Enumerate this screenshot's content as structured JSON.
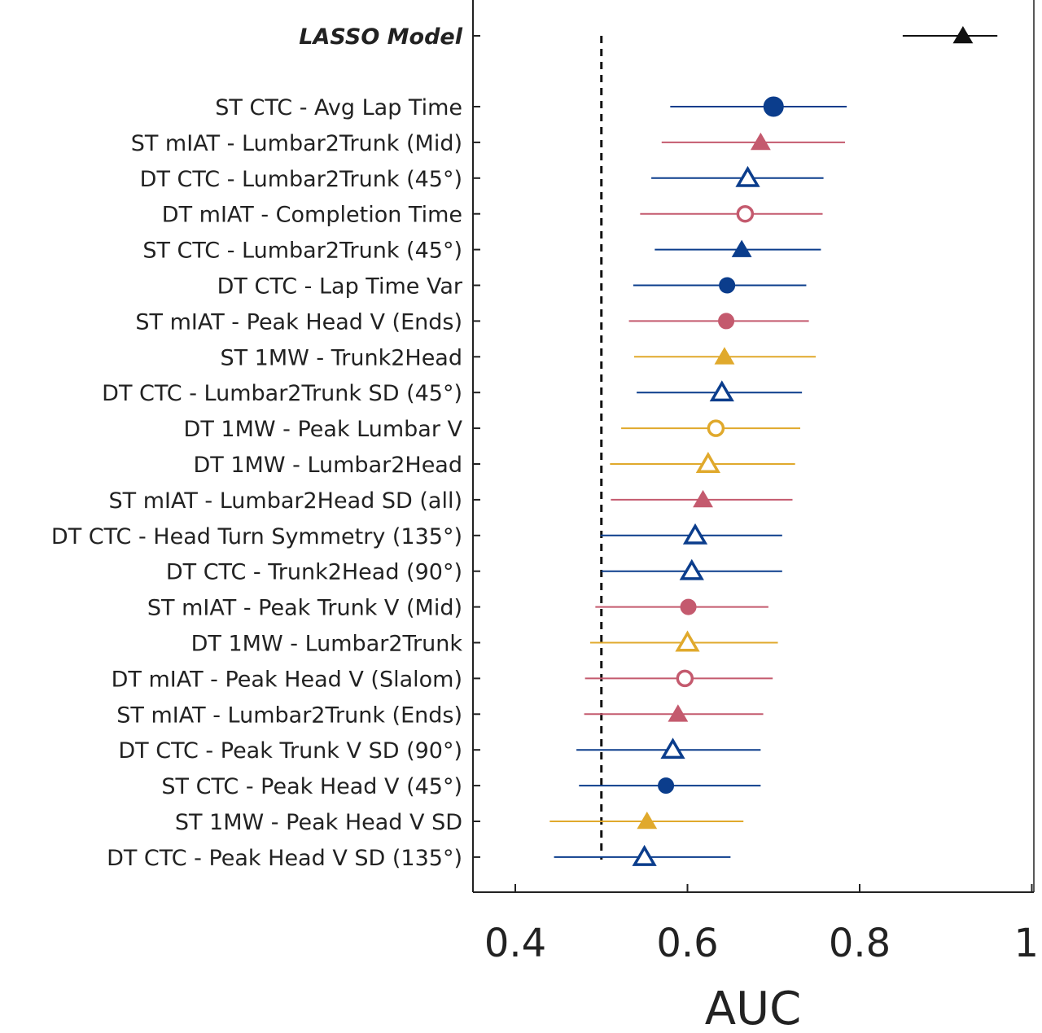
{
  "chart_data": {
    "type": "forest",
    "xlabel": "AUC",
    "xlim": [
      0.35,
      1.0
    ],
    "xticks": [
      0.4,
      0.6,
      0.8,
      1
    ],
    "xtick_labels": [
      "0.4",
      "0.6",
      "0.8",
      "1"
    ],
    "reference_line": {
      "x": 0.5,
      "style": "dashed"
    },
    "colors": {
      "blue": "#0b3d8c",
      "pink": "#c45a6e",
      "yellow": "#e0a92c",
      "black": "#111111"
    },
    "rows": [
      {
        "label": "LASSO Model",
        "bold": true,
        "auc": 0.92,
        "lo": 0.85,
        "hi": 0.96,
        "marker": "triangle",
        "filled": true,
        "color": "black"
      },
      {
        "label": "ST CTC - Avg Lap Time",
        "auc": 0.7,
        "lo": 0.58,
        "hi": 0.785,
        "marker": "circle",
        "filled": true,
        "color": "blue",
        "big": true
      },
      {
        "label": "ST mIAT - Lumbar2Trunk (Mid)",
        "auc": 0.685,
        "lo": 0.57,
        "hi": 0.783,
        "marker": "triangle",
        "filled": true,
        "color": "pink"
      },
      {
        "label": "DT CTC - Lumbar2Trunk (45°)",
        "auc": 0.67,
        "lo": 0.558,
        "hi": 0.758,
        "marker": "triangle",
        "filled": false,
        "color": "blue"
      },
      {
        "label": "DT mIAT - Completion Time",
        "auc": 0.667,
        "lo": 0.545,
        "hi": 0.757,
        "marker": "circle",
        "filled": false,
        "color": "pink"
      },
      {
        "label": "ST CTC - Lumbar2Trunk (45°)",
        "auc": 0.663,
        "lo": 0.562,
        "hi": 0.755,
        "marker": "triangle",
        "filled": true,
        "color": "blue"
      },
      {
        "label": "DT CTC - Lap Time Var",
        "auc": 0.646,
        "lo": 0.537,
        "hi": 0.738,
        "marker": "circle",
        "filled": true,
        "color": "blue"
      },
      {
        "label": "ST mIAT - Peak Head V (Ends)",
        "auc": 0.645,
        "lo": 0.532,
        "hi": 0.741,
        "marker": "circle",
        "filled": true,
        "color": "pink"
      },
      {
        "label": "ST 1MW - Trunk2Head",
        "auc": 0.643,
        "lo": 0.538,
        "hi": 0.749,
        "marker": "triangle",
        "filled": true,
        "color": "yellow"
      },
      {
        "label": "DT CTC - Lumbar2Trunk SD (45°)",
        "auc": 0.64,
        "lo": 0.541,
        "hi": 0.733,
        "marker": "triangle",
        "filled": false,
        "color": "blue"
      },
      {
        "label": "DT 1MW - Peak Lumbar V",
        "auc": 0.633,
        "lo": 0.523,
        "hi": 0.731,
        "marker": "circle",
        "filled": false,
        "color": "yellow"
      },
      {
        "label": "DT 1MW - Lumbar2Head",
        "auc": 0.624,
        "lo": 0.51,
        "hi": 0.725,
        "marker": "triangle",
        "filled": false,
        "color": "yellow"
      },
      {
        "label": "ST mIAT - Lumbar2Head SD (all)",
        "auc": 0.618,
        "lo": 0.511,
        "hi": 0.722,
        "marker": "triangle",
        "filled": true,
        "color": "pink"
      },
      {
        "label": "DT CTC - Head Turn Symmetry (135°)",
        "auc": 0.609,
        "lo": 0.499,
        "hi": 0.71,
        "marker": "triangle",
        "filled": false,
        "color": "blue"
      },
      {
        "label": "DT CTC - Trunk2Head (90°)",
        "auc": 0.605,
        "lo": 0.5,
        "hi": 0.71,
        "marker": "triangle",
        "filled": false,
        "color": "blue"
      },
      {
        "label": "ST mIAT - Peak Trunk V (Mid)",
        "auc": 0.601,
        "lo": 0.493,
        "hi": 0.694,
        "marker": "circle",
        "filled": true,
        "color": "pink"
      },
      {
        "label": "DT 1MW - Lumbar2Trunk",
        "auc": 0.6,
        "lo": 0.487,
        "hi": 0.705,
        "marker": "triangle",
        "filled": false,
        "color": "yellow"
      },
      {
        "label": "DT mIAT - Peak Head V (Slalom)",
        "auc": 0.597,
        "lo": 0.481,
        "hi": 0.699,
        "marker": "circle",
        "filled": false,
        "color": "pink"
      },
      {
        "label": "ST mIAT - Lumbar2Trunk (Ends)",
        "auc": 0.589,
        "lo": 0.48,
        "hi": 0.688,
        "marker": "triangle",
        "filled": true,
        "color": "pink"
      },
      {
        "label": "DT CTC - Peak Trunk V SD (90°)",
        "auc": 0.583,
        "lo": 0.471,
        "hi": 0.685,
        "marker": "triangle",
        "filled": false,
        "color": "blue"
      },
      {
        "label": "ST CTC - Peak Head V (45°)",
        "auc": 0.575,
        "lo": 0.474,
        "hi": 0.685,
        "marker": "circle",
        "filled": true,
        "color": "blue"
      },
      {
        "label": "ST 1MW - Peak Head V SD",
        "auc": 0.553,
        "lo": 0.44,
        "hi": 0.665,
        "marker": "triangle",
        "filled": true,
        "color": "yellow"
      },
      {
        "label": "DT CTC - Peak Head V SD (135°)",
        "auc": 0.55,
        "lo": 0.445,
        "hi": 0.65,
        "marker": "triangle",
        "filled": false,
        "color": "blue"
      }
    ]
  }
}
